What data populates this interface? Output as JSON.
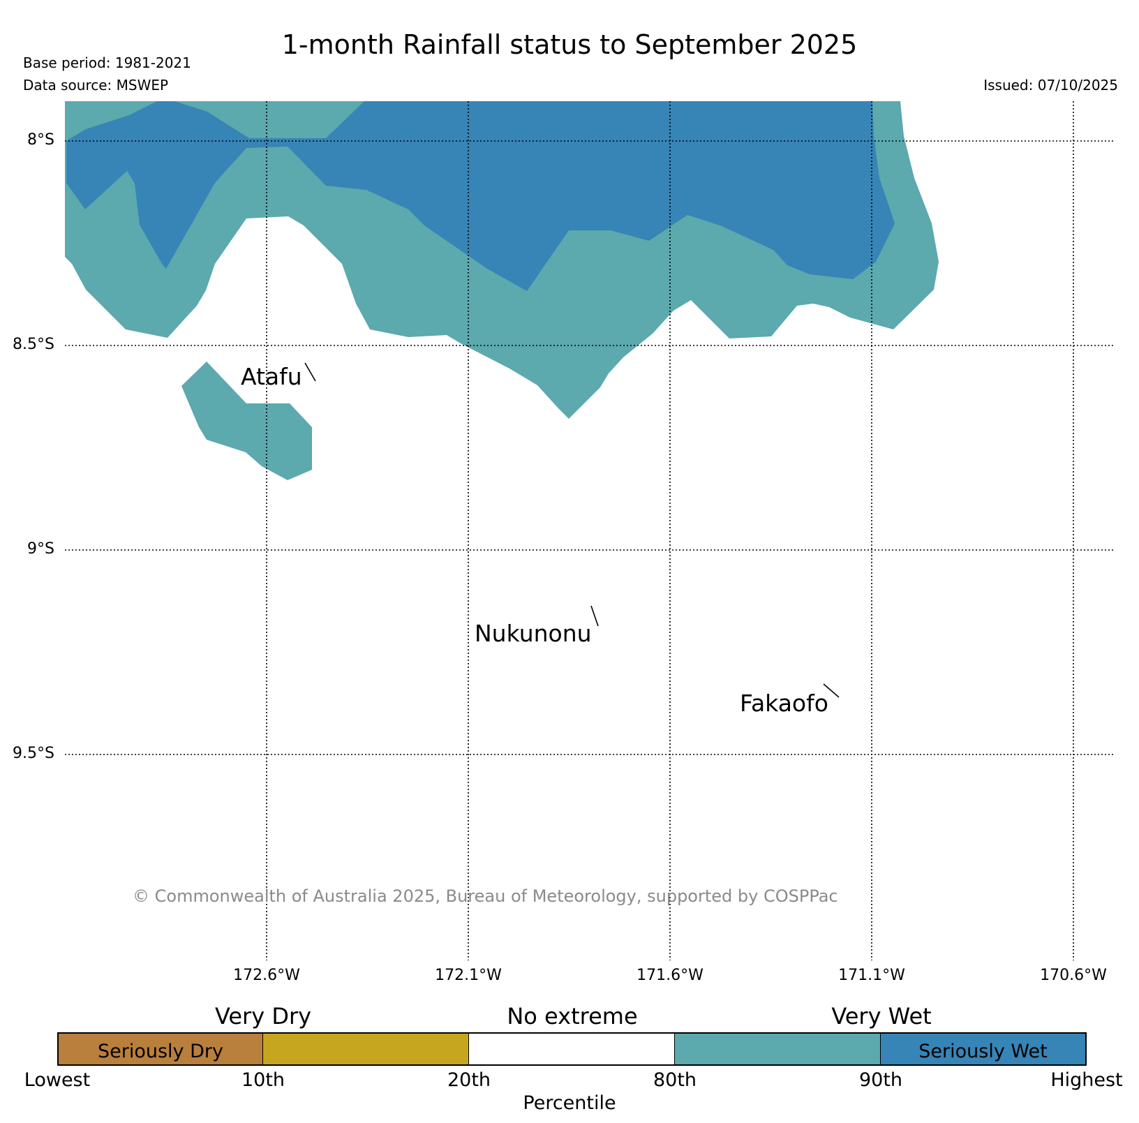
{
  "title": "1-month Rainfall status to September 2025",
  "base_period": "Base period: 1981-2021",
  "data_source": "Data source: MSWEP",
  "issued": "Issued: 07/10/2025",
  "axes": {
    "lat_labels": [
      "8°S",
      "8.5°S",
      "9°S",
      "9.5°S"
    ],
    "lon_labels": [
      "172.6°W",
      "172.1°W",
      "171.6°W",
      "171.1°W",
      "170.6°W"
    ]
  },
  "places": {
    "atafu": "Atafu",
    "nukunonu": "Nukunonu",
    "fakaofo": "Fakaofo"
  },
  "copyright": "© Commonwealth of Australia 2025, Bureau of Meteorology, supported by COSPPac",
  "legend": {
    "categories": {
      "very_dry": "Very Dry",
      "no_extreme": "No extreme",
      "very_wet": "Very Wet"
    },
    "segments": {
      "seriously_dry": "Seriously Dry",
      "seriously_wet": "Seriously Wet"
    },
    "ticks": [
      "Lowest",
      "10th",
      "20th",
      "80th",
      "90th",
      "Highest"
    ],
    "axis_label": "Percentile"
  },
  "colors": {
    "seriously_dry": "#b97f3c",
    "very_dry": "#c6a61e",
    "no_extreme": "#ffffff",
    "very_wet": "#5ca9ae",
    "seriously_wet": "#3784b6"
  }
}
